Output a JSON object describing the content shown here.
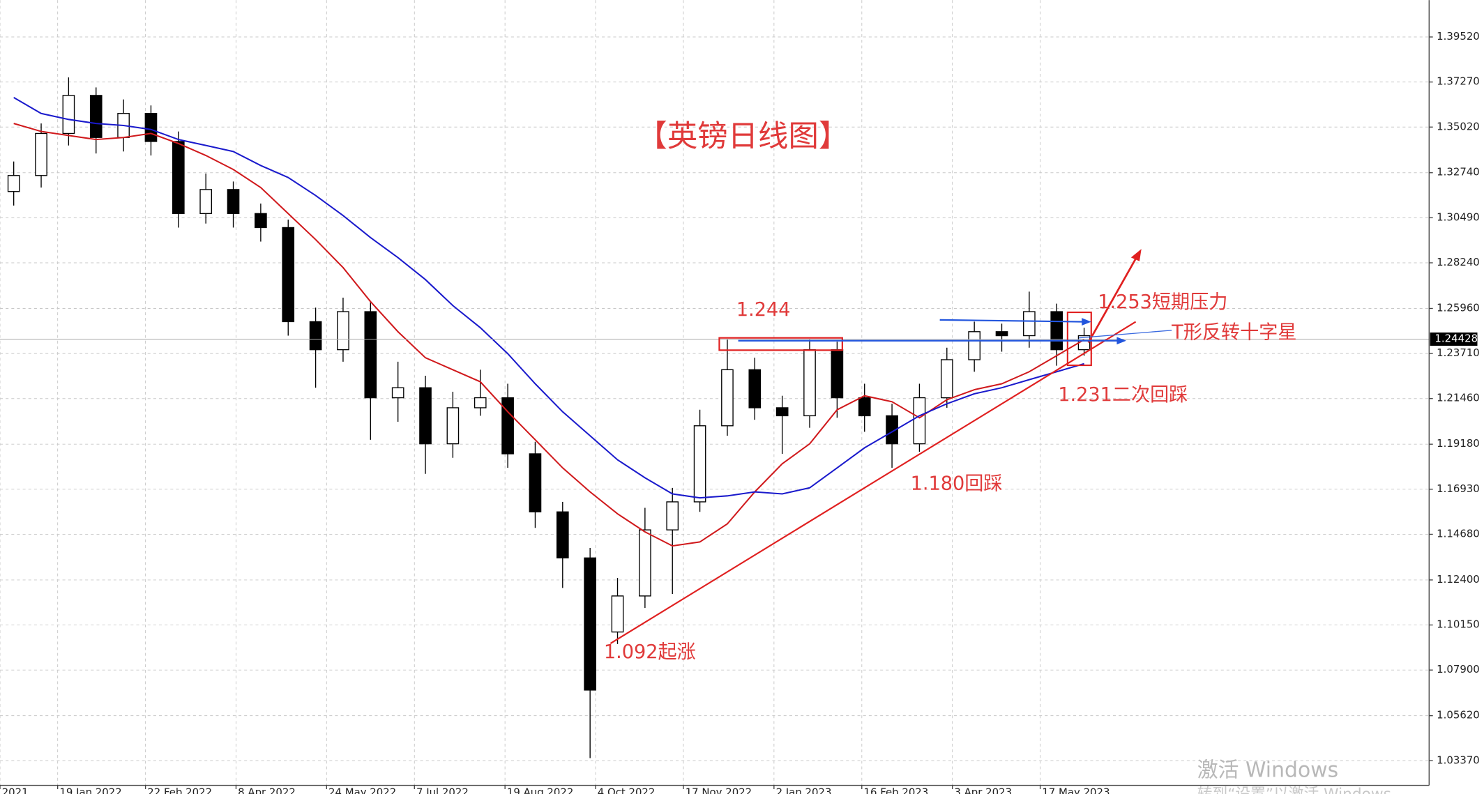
{
  "chart_data": {
    "type": "candlestick",
    "title": "【英镑日线图】",
    "open": [
      1.318,
      1.326,
      1.347,
      1.366,
      1.345,
      1.357,
      1.343,
      1.307,
      1.319,
      1.307,
      1.3,
      1.253,
      1.239,
      1.258,
      1.215,
      1.22,
      1.192,
      1.21,
      1.215,
      1.187,
      1.158,
      1.135,
      1.098,
      1.116,
      1.149,
      1.163,
      1.201,
      1.229,
      1.21,
      1.206,
      1.239,
      1.215,
      1.206,
      1.192,
      1.215,
      1.234,
      1.248,
      1.246,
      1.258,
      1.239
    ],
    "high": [
      1.333,
      1.352,
      1.375,
      1.37,
      1.364,
      1.361,
      1.348,
      1.327,
      1.323,
      1.312,
      1.304,
      1.26,
      1.265,
      1.263,
      1.233,
      1.226,
      1.218,
      1.229,
      1.222,
      1.193,
      1.163,
      1.14,
      1.125,
      1.16,
      1.17,
      1.209,
      1.244,
      1.235,
      1.216,
      1.244,
      1.243,
      1.222,
      1.212,
      1.222,
      1.24,
      1.253,
      1.252,
      1.268,
      1.262,
      1.25
    ],
    "low": [
      1.311,
      1.32,
      1.341,
      1.337,
      1.338,
      1.336,
      1.3,
      1.302,
      1.3,
      1.293,
      1.246,
      1.22,
      1.233,
      1.194,
      1.203,
      1.177,
      1.185,
      1.206,
      1.18,
      1.15,
      1.12,
      1.035,
      1.092,
      1.11,
      1.117,
      1.158,
      1.196,
      1.204,
      1.187,
      1.2,
      1.205,
      1.198,
      1.18,
      1.188,
      1.21,
      1.228,
      1.238,
      1.24,
      1.231,
      1.236
    ],
    "close": [
      1.326,
      1.347,
      1.366,
      1.345,
      1.357,
      1.343,
      1.307,
      1.319,
      1.307,
      1.3,
      1.253,
      1.239,
      1.258,
      1.215,
      1.22,
      1.192,
      1.21,
      1.215,
      1.187,
      1.158,
      1.135,
      1.069,
      1.116,
      1.149,
      1.163,
      1.201,
      1.229,
      1.21,
      1.206,
      1.239,
      1.215,
      1.206,
      1.192,
      1.215,
      1.234,
      1.248,
      1.246,
      1.258,
      1.239,
      1.246
    ],
    "up_color": "#ffffff",
    "down_color": "#000000",
    "moving_averages": [
      {
        "color": "#d0191c",
        "values": [
          1.352,
          1.348,
          1.346,
          1.344,
          1.345,
          1.347,
          1.342,
          1.336,
          1.329,
          1.32,
          1.307,
          1.294,
          1.28,
          1.263,
          1.248,
          1.235,
          1.229,
          1.223,
          1.208,
          1.194,
          1.18,
          1.168,
          1.157,
          1.148,
          1.141,
          1.143,
          1.152,
          1.168,
          1.182,
          1.192,
          1.209,
          1.216,
          1.213,
          1.205,
          1.214,
          1.219,
          1.222,
          1.228,
          1.236,
          1.244
        ]
      },
      {
        "color": "#1a1acc",
        "values": [
          1.365,
          1.357,
          1.354,
          1.352,
          1.351,
          1.349,
          1.344,
          1.341,
          1.338,
          1.331,
          1.325,
          1.316,
          1.306,
          1.295,
          1.285,
          1.274,
          1.261,
          1.25,
          1.237,
          1.222,
          1.208,
          1.196,
          1.184,
          1.175,
          1.167,
          1.165,
          1.166,
          1.168,
          1.167,
          1.17,
          1.18,
          1.19,
          1.198,
          1.206,
          1.212,
          1.217,
          1.22,
          1.224,
          1.228,
          1.232
        ]
      }
    ],
    "xlim": [
      -0.5,
      51.57
    ],
    "ylim": [
      1.0214,
      1.4136
    ],
    "xticks": [
      {
        "value": -0.5,
        "label": "2021"
      },
      {
        "value": 1.6,
        "label": "19 Jan 2022"
      },
      {
        "value": 4.8,
        "label": "22 Feb 2022"
      },
      {
        "value": 8.1,
        "label": "8 Apr 2022"
      },
      {
        "value": 11.4,
        "label": "24 May 2022"
      },
      {
        "value": 14.6,
        "label": "7 Jul 2022"
      },
      {
        "value": 17.9,
        "label": "19 Aug 2022"
      },
      {
        "value": 21.2,
        "label": "4 Oct 2022"
      },
      {
        "value": 24.4,
        "label": "17 Nov 2022"
      },
      {
        "value": 27.7,
        "label": "2 Jan 2023"
      },
      {
        "value": 30.9,
        "label": "16 Feb 2023"
      },
      {
        "value": 34.2,
        "label": "3 Apr 2023"
      },
      {
        "value": 37.4,
        "label": "17 May 2023"
      }
    ],
    "yticks": [
      {
        "value": 1.0337,
        "label": "1.03370"
      },
      {
        "value": 1.0562,
        "label": "1.05620"
      },
      {
        "value": 1.079,
        "label": "1.07900"
      },
      {
        "value": 1.1015,
        "label": "1.10150"
      },
      {
        "value": 1.124,
        "label": "1.12400"
      },
      {
        "value": 1.1468,
        "label": "1.14680"
      },
      {
        "value": 1.1693,
        "label": "1.16930"
      },
      {
        "value": 1.1918,
        "label": "1.19180"
      },
      {
        "value": 1.2146,
        "label": "1.21460"
      },
      {
        "value": 1.2371,
        "label": "1.23710"
      },
      {
        "value": 1.2596,
        "label": "1.25960"
      },
      {
        "value": 1.2824,
        "label": "1.28240"
      },
      {
        "value": 1.3049,
        "label": "1.30490"
      },
      {
        "value": 1.3274,
        "label": "1.32740"
      },
      {
        "value": 1.3502,
        "label": "1.35020"
      },
      {
        "value": 1.3727,
        "label": "1.37270"
      },
      {
        "value": 1.3952,
        "label": "1.39520"
      }
    ],
    "current_price": {
      "value": 1.24428,
      "label": "1.24428"
    },
    "grid": true,
    "annotations": [
      "1.244",
      "1.253短期压力",
      "T形反转十字星",
      "1.231二次回踩",
      "1.180回踩",
      "1.092起涨"
    ],
    "watermark": [
      "激活 Windows",
      "转到“设置”以激活 Windows。"
    ]
  }
}
